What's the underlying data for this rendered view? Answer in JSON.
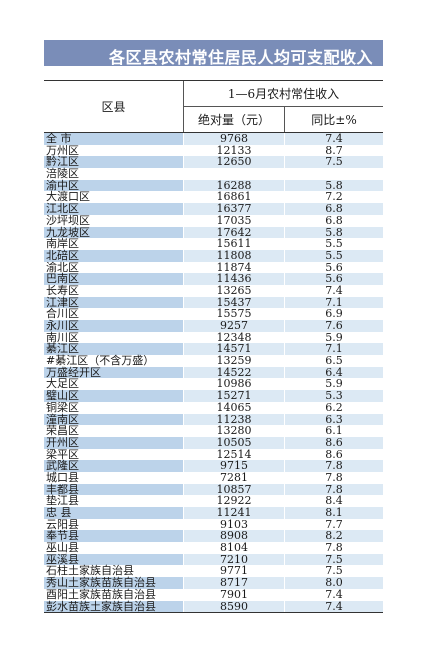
{
  "title": "各区县农村常住居民人均可支配收入",
  "header": {
    "district": "区县",
    "group": "1—6月农村常住收入",
    "col_amount": "绝对量（元）",
    "col_change": "同比±%"
  },
  "rows": [
    {
      "name": "全 市",
      "amount": "9768",
      "change": "7.4"
    },
    {
      "name": "万州区",
      "amount": "12133",
      "change": "8.7"
    },
    {
      "name": "黔江区",
      "amount": "12650",
      "change": "7.5"
    },
    {
      "name": "涪陵区",
      "amount": "",
      "change": ""
    },
    {
      "name": "渝中区",
      "amount": "16288",
      "change": "5.8"
    },
    {
      "name": "大渡口区",
      "amount": "16861",
      "change": "7.2"
    },
    {
      "name": "江北区",
      "amount": "16377",
      "change": "6.8"
    },
    {
      "name": "沙坪坝区",
      "amount": "17035",
      "change": "6.8"
    },
    {
      "name": "九龙坡区",
      "amount": "17642",
      "change": "5.8"
    },
    {
      "name": "南岸区",
      "amount": "15611",
      "change": "5.5"
    },
    {
      "name": "北碚区",
      "amount": "11808",
      "change": "5.5"
    },
    {
      "name": "渝北区",
      "amount": "11874",
      "change": "5.6"
    },
    {
      "name": "巴南区",
      "amount": "11436",
      "change": "5.6"
    },
    {
      "name": "长寿区",
      "amount": "13265",
      "change": "7.4"
    },
    {
      "name": "江津区",
      "amount": "15437",
      "change": "7.1"
    },
    {
      "name": "合川区",
      "amount": "15575",
      "change": "6.9"
    },
    {
      "name": "永川区",
      "amount": "9257",
      "change": "7.6"
    },
    {
      "name": "南川区",
      "amount": "12348",
      "change": "5.9"
    },
    {
      "name": "綦江区",
      "amount": "14571",
      "change": "7.1"
    },
    {
      "name": "#綦江区（不含万盛）",
      "amount": "13259",
      "change": "6.5"
    },
    {
      "name": "  万盛经开区",
      "amount": "14522",
      "change": "6.4"
    },
    {
      "name": "大足区",
      "amount": "10986",
      "change": "5.9"
    },
    {
      "name": "璧山区",
      "amount": "15271",
      "change": "5.3"
    },
    {
      "name": "铜梁区",
      "amount": "14065",
      "change": "6.2"
    },
    {
      "name": "潼南区",
      "amount": "11238",
      "change": "6.3"
    },
    {
      "name": "荣昌区",
      "amount": "13280",
      "change": "6.1"
    },
    {
      "name": "开州区",
      "amount": "10505",
      "change": "8.6"
    },
    {
      "name": "梁平区",
      "amount": "12514",
      "change": "8.6"
    },
    {
      "name": "武隆区",
      "amount": "9715",
      "change": "7.8"
    },
    {
      "name": "城口县",
      "amount": "7281",
      "change": "7.8"
    },
    {
      "name": "丰都县",
      "amount": "10857",
      "change": "7.8"
    },
    {
      "name": "垫江县",
      "amount": "12922",
      "change": "8.4"
    },
    {
      "name": "忠 县",
      "amount": "11241",
      "change": "8.1"
    },
    {
      "name": "云阳县",
      "amount": "9103",
      "change": "7.7"
    },
    {
      "name": "奉节县",
      "amount": "8908",
      "change": "8.2"
    },
    {
      "name": "巫山县",
      "amount": "8104",
      "change": "7.8"
    },
    {
      "name": "巫溪县",
      "amount": "7210",
      "change": "7.5"
    },
    {
      "name": "石柱土家族自治县",
      "amount": "9771",
      "change": "7.5"
    },
    {
      "name": "秀山土家族苗族自治县",
      "amount": "8717",
      "change": "8.0"
    },
    {
      "name": "酉阳土家族苗族自治县",
      "amount": "7901",
      "change": "7.4"
    },
    {
      "name": "彭水苗族土家族自治县",
      "amount": "8590",
      "change": "7.4"
    }
  ]
}
